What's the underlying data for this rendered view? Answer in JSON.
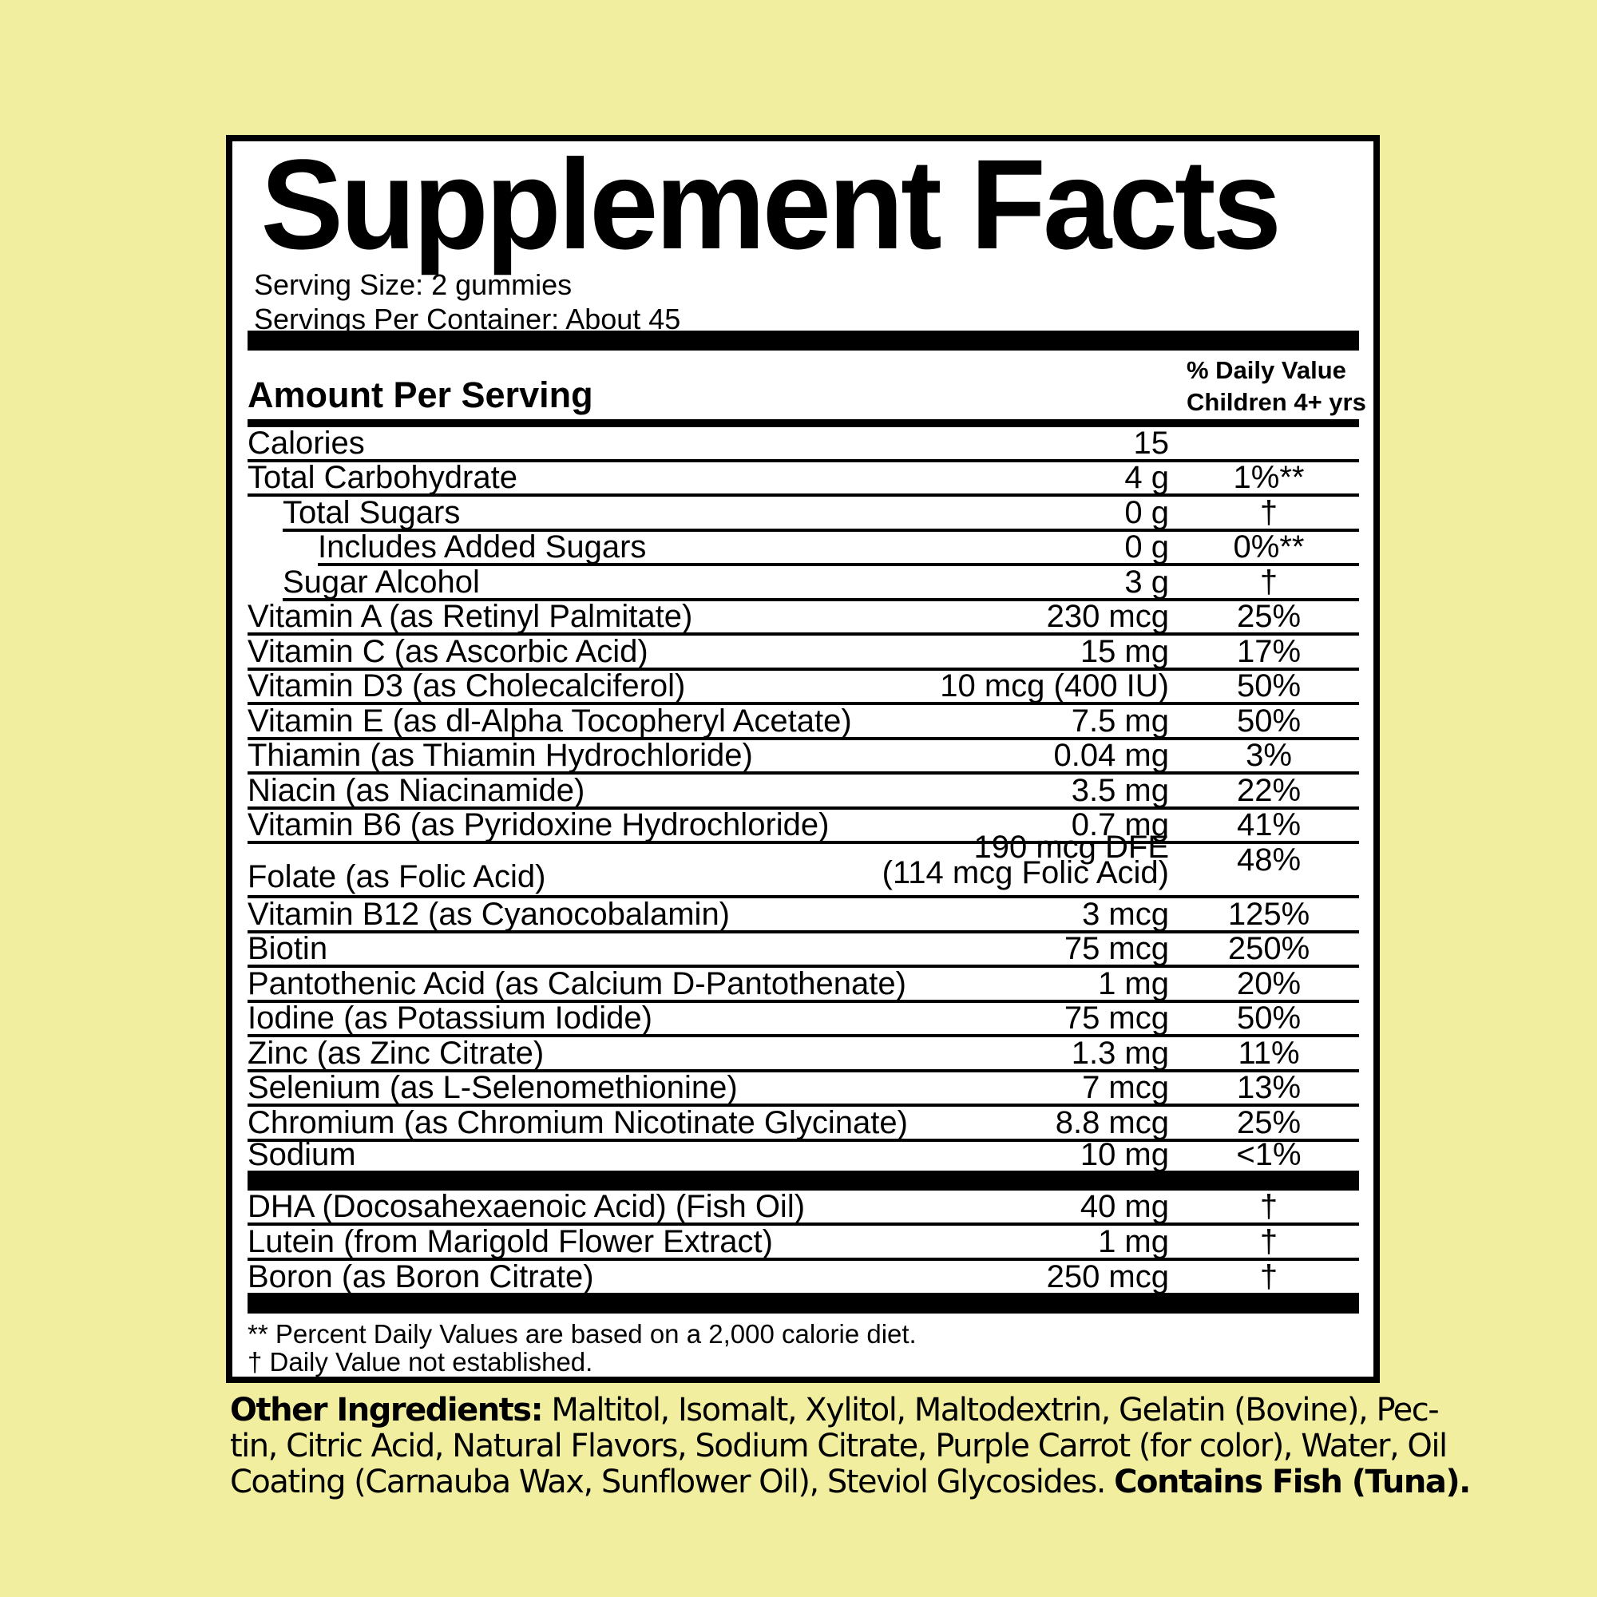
{
  "colors": {
    "background": "#f1ee9f",
    "panel_background": "#ffffff",
    "ink": "#000000"
  },
  "panel": {
    "title": "Supplement Facts",
    "serving_size": "Serving Size: 2 gummies",
    "servings_per_container": "Servings Per Container: About 45",
    "header": {
      "amount_label": "Amount Per Serving",
      "dv_line1": "% Daily Value",
      "dv_line2": "Children 4+ yrs"
    },
    "rows": [
      {
        "name": "Calories",
        "amount": "15",
        "dv": "",
        "indent": 0
      },
      {
        "name": "Total Carbohydrate",
        "amount": "4 g",
        "dv": "1%**",
        "indent": 0
      },
      {
        "name": "Total Sugars",
        "amount": "0 g",
        "dv": "†",
        "indent": 1
      },
      {
        "name": "Includes Added Sugars",
        "amount": "0 g",
        "dv": "0%**",
        "indent": 2
      },
      {
        "name": "Sugar Alcohol",
        "amount": "3 g",
        "dv": "†",
        "indent": 1
      },
      {
        "name": "Vitamin A (as Retinyl Palmitate)",
        "amount": "230 mcg",
        "dv": "25%",
        "indent": 0
      },
      {
        "name": "Vitamin C (as Ascorbic Acid)",
        "amount": "15 mg",
        "dv": "17%",
        "indent": 0
      },
      {
        "name": "Vitamin D3 (as Cholecalciferol)",
        "amount": "10 mcg (400 IU)",
        "dv": "50%",
        "indent": 0
      },
      {
        "name": "Vitamin E (as dl-Alpha Tocopheryl Acetate)",
        "amount": "7.5 mg",
        "dv": "50%",
        "indent": 0
      },
      {
        "name": "Thiamin (as Thiamin Hydrochloride)",
        "amount": "0.04 mg",
        "dv": "3%",
        "indent": 0
      },
      {
        "name": "Niacin (as Niacinamide)",
        "amount": "3.5 mg",
        "dv": "22%",
        "indent": 0
      },
      {
        "name": "Vitamin B6 (as Pyridoxine Hydrochloride)",
        "amount": "0.7 mg",
        "dv": "41%",
        "indent": 0
      },
      {
        "name": "Folate (as Folic Acid)",
        "amount_lines": [
          "190 mcg DFE",
          "(114 mcg Folic Acid)"
        ],
        "dv": "48%",
        "indent": 0
      },
      {
        "name": "Vitamin B12 (as Cyanocobalamin)",
        "amount": "3 mcg",
        "dv": "125%",
        "indent": 0
      },
      {
        "name": "Biotin",
        "amount": "75 mcg",
        "dv": "250%",
        "indent": 0
      },
      {
        "name": "Pantothenic Acid (as Calcium D-Pantothenate)",
        "amount": "1 mg",
        "dv": "20%",
        "indent": 0
      },
      {
        "name": "Iodine (as Potassium Iodide)",
        "amount": "75 mcg",
        "dv": "50%",
        "indent": 0
      },
      {
        "name": "Zinc (as Zinc Citrate)",
        "amount": "1.3 mg",
        "dv": "11%",
        "indent": 0
      },
      {
        "name": "Selenium (as L-Selenomethionine)",
        "amount": "7 mcg",
        "dv": "13%",
        "indent": 0
      },
      {
        "name": "Chromium (as Chromium Nicotinate Glycinate)",
        "amount": "8.8 mcg",
        "dv": "25%",
        "indent": 0
      },
      {
        "name": "Sodium",
        "amount": "10 mg",
        "dv": "<1%",
        "indent": 0,
        "underline": false,
        "short": true
      }
    ],
    "extra_rows": [
      {
        "name": "DHA (Docosahexaenoic Acid) (Fish Oil)",
        "amount": "40 mg",
        "dv": "†",
        "indent": 0
      },
      {
        "name": "Lutein (from Marigold Flower Extract)",
        "amount": "1 mg",
        "dv": "†",
        "indent": 0
      },
      {
        "name": "Boron (as Boron Citrate)",
        "amount": "250 mcg",
        "dv": "†",
        "indent": 0,
        "underline": false,
        "last": true
      }
    ],
    "footnotes": [
      "** Percent Daily Values are based on a 2,000 calorie diet.",
      "† Daily Value not established."
    ]
  },
  "other_ingredients": {
    "lines": [
      [
        {
          "b": "Other Ingredients:"
        },
        {
          "t": " Maltitol, Isomalt, Xylitol, Maltodextrin, Gelatin (Bovine), Pec-"
        }
      ],
      [
        {
          "t": "tin, Citric Acid, Natural Flavors, Sodium Citrate, Purple Carrot (for color), Water, Oil"
        }
      ],
      [
        {
          "t": "Coating (Carnauba Wax, Sunflower Oil), Steviol Glycosides. "
        },
        {
          "b": "Contains Fish (Tuna)."
        }
      ]
    ]
  }
}
